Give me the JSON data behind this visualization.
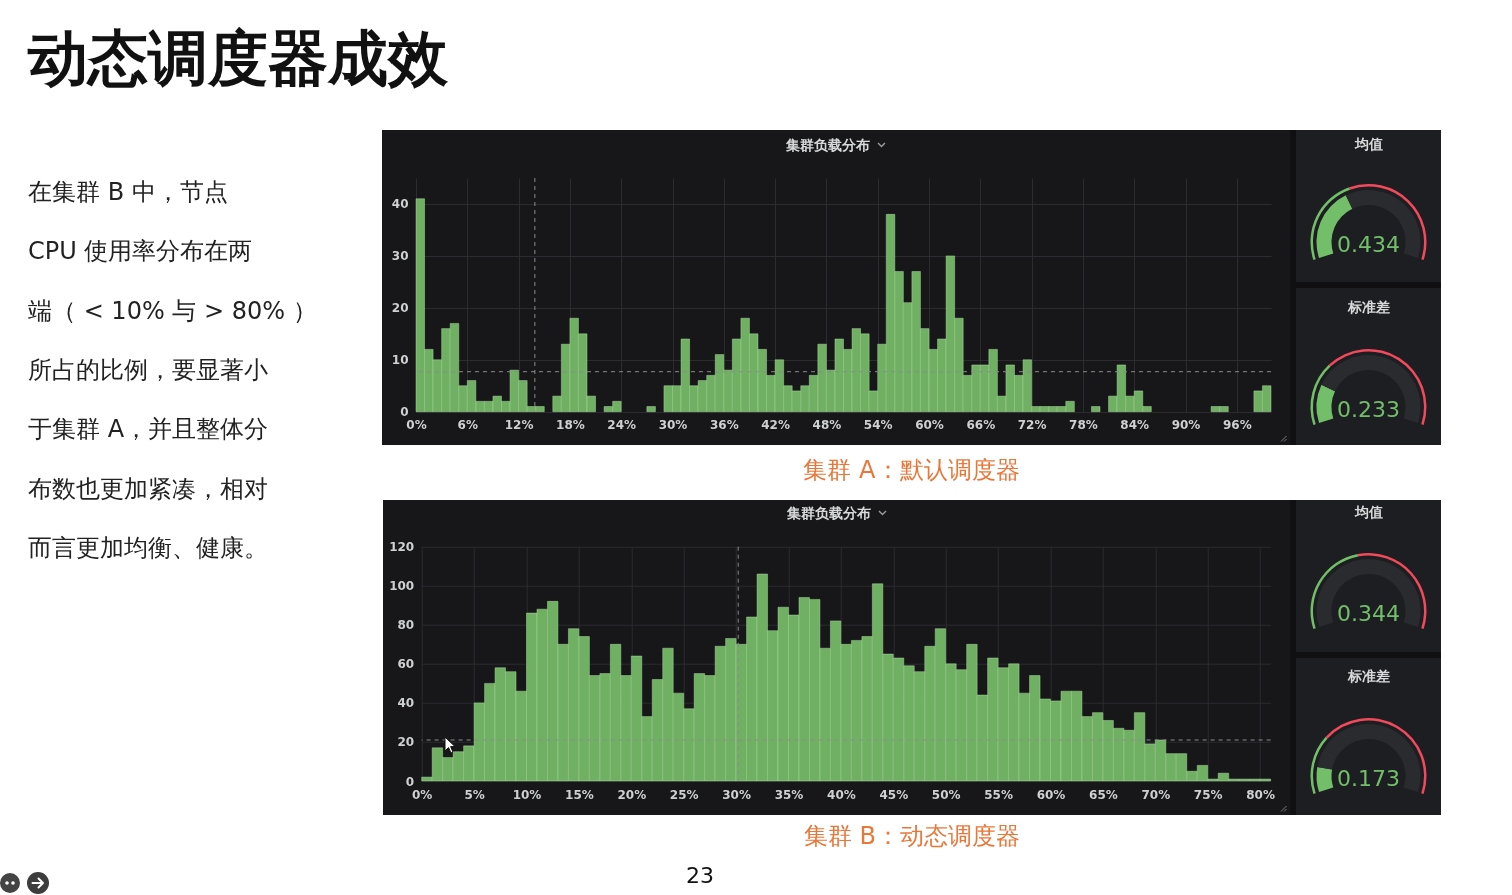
{
  "chart_data": [
    {
      "type": "other",
      "title": "动态调度器成效",
      "annotations": [
        "在集群 B 中，节点",
        "CPU 使用率分布在两",
        "端（ < 10% 与 > 80% ）",
        "所占的比例，要显著小",
        "于集群 A，并且整体分",
        "布数也更加紧凑，相对",
        "而言更加均衡、健康。",
        "23"
      ]
    },
    {
      "type": "histogram",
      "title": "集群负载分布",
      "bins": [
        0,
        1,
        2,
        3,
        4,
        5,
        6,
        7,
        8,
        9,
        10,
        11,
        12,
        13,
        14,
        15,
        16,
        17,
        18,
        19,
        20,
        21,
        22,
        23,
        24,
        25,
        26,
        27,
        28,
        29,
        30,
        31,
        32,
        33,
        34,
        35,
        36,
        37,
        38,
        39,
        40,
        41,
        42,
        43,
        44,
        45,
        46,
        47,
        48,
        49,
        50,
        51,
        52,
        53,
        54,
        55,
        56,
        57,
        58,
        59,
        60,
        61,
        62,
        63,
        64,
        65,
        66,
        67,
        68,
        69,
        70,
        71,
        72,
        73,
        74,
        75,
        76,
        77,
        78,
        79,
        80,
        81,
        82,
        83,
        84,
        85,
        86,
        87,
        88,
        89,
        90,
        91,
        92,
        93,
        94,
        95,
        96,
        97,
        98,
        99,
        100
      ],
      "values": [
        41,
        12,
        10,
        16,
        17,
        5,
        6,
        2,
        2,
        3,
        2,
        8,
        6,
        1,
        1,
        0,
        3,
        13,
        18,
        15,
        3,
        0,
        1,
        2,
        0,
        0,
        0,
        1,
        0,
        5,
        5,
        14,
        5,
        6,
        7,
        11,
        8,
        14,
        18,
        15,
        12,
        7,
        10,
        5,
        4,
        5,
        7,
        13,
        8,
        14,
        12,
        16,
        15,
        4,
        13,
        38,
        27,
        21,
        27,
        16,
        12,
        14,
        30,
        18,
        7,
        9,
        9,
        12,
        3,
        9,
        7,
        10,
        1,
        1,
        1,
        1,
        2,
        0,
        0,
        1,
        0,
        3,
        9,
        3,
        4,
        1,
        0,
        0,
        0,
        0,
        0,
        0,
        0,
        1,
        1,
        0,
        0,
        0,
        4,
        5
      ],
      "color": "#6fb063",
      "xlim": [
        0,
        100
      ],
      "ylim": [
        0,
        45
      ],
      "xticks": [
        {
          "value": 0,
          "label": "0%"
        },
        {
          "value": 6,
          "label": "6%"
        },
        {
          "value": 12,
          "label": "12%"
        },
        {
          "value": 18,
          "label": "18%"
        },
        {
          "value": 24,
          "label": "24%"
        },
        {
          "value": 30,
          "label": "30%"
        },
        {
          "value": 36,
          "label": "36%"
        },
        {
          "value": 42,
          "label": "42%"
        },
        {
          "value": 48,
          "label": "48%"
        },
        {
          "value": 54,
          "label": "54%"
        },
        {
          "value": 60,
          "label": "60%"
        },
        {
          "value": 66,
          "label": "66%"
        },
        {
          "value": 72,
          "label": "72%"
        },
        {
          "value": 78,
          "label": "78%"
        },
        {
          "value": 84,
          "label": "84%"
        },
        {
          "value": 90,
          "label": "90%"
        },
        {
          "value": 96,
          "label": "96%"
        }
      ],
      "yticks": [
        0,
        10,
        20,
        30,
        40
      ],
      "grid": true,
      "ref_lines": [
        {
          "axis": "x",
          "value": 13.9,
          "color": "#8c8c8c",
          "line_style": "dashed"
        },
        {
          "axis": "y",
          "value": 7.7,
          "color": "#8c8c8c",
          "line_style": "dashed"
        }
      ],
      "annotations": [
        "集群 A：默认调度器"
      ]
    },
    {
      "type": "donut",
      "title": "均值",
      "categories": [
        null,
        null
      ],
      "series": [
        {
          "values": [
            38,
            62
          ],
          "colors": [
            "#73bf69",
            "#2a2b2f"
          ]
        },
        {
          "values": [
            41,
            59
          ],
          "colors": [
            "#73bf69",
            "#f2495c"
          ]
        }
      ],
      "annotations": [
        "0.434"
      ]
    },
    {
      "type": "donut",
      "title": "标准差",
      "categories": [
        null,
        null
      ],
      "series": [
        {
          "values": [
            20,
            80
          ],
          "colors": [
            "#73bf69",
            "#2a2b2f"
          ]
        },
        {
          "values": [
            30,
            70
          ],
          "colors": [
            "#73bf69",
            "#f2495c"
          ]
        }
      ],
      "annotations": [
        "0.233"
      ]
    },
    {
      "type": "histogram",
      "title": "集群负载分布",
      "bins": [
        0,
        1,
        2,
        3,
        4,
        5,
        6,
        7,
        8,
        9,
        10,
        11,
        12,
        13,
        14,
        15,
        16,
        17,
        18,
        19,
        20,
        21,
        22,
        23,
        24,
        25,
        26,
        27,
        28,
        29,
        30,
        31,
        32,
        33,
        34,
        35,
        36,
        37,
        38,
        39,
        40,
        41,
        42,
        43,
        44,
        45,
        46,
        47,
        48,
        49,
        50,
        51,
        52,
        53,
        54,
        55,
        56,
        57,
        58,
        59,
        60,
        61,
        62,
        63,
        64,
        65,
        66,
        67,
        68,
        69,
        70,
        71,
        72,
        73,
        74,
        75,
        76,
        77,
        78,
        79,
        80,
        81
      ],
      "values": [
        2,
        17,
        12,
        15,
        18,
        40,
        50,
        58,
        56,
        46,
        86,
        88,
        92,
        70,
        78,
        74,
        54,
        55,
        70,
        54,
        64,
        33,
        52,
        68,
        45,
        37,
        55,
        54,
        69,
        73,
        70,
        84,
        106,
        77,
        89,
        85,
        94,
        93,
        68,
        82,
        70,
        72,
        74,
        101,
        65,
        63,
        59,
        56,
        69,
        78,
        60,
        57,
        70,
        44,
        63,
        58,
        60,
        45,
        54,
        42,
        41,
        46,
        46,
        33,
        35,
        31,
        27,
        26,
        35,
        19,
        21,
        14,
        14,
        5,
        8,
        1,
        4,
        1,
        1,
        1,
        1
      ],
      "color": "#6fb063",
      "xlim": [
        0,
        81
      ],
      "ylim": [
        0,
        120
      ],
      "xticks": [
        {
          "value": 0,
          "label": "0%"
        },
        {
          "value": 5,
          "label": "5%"
        },
        {
          "value": 10,
          "label": "10%"
        },
        {
          "value": 15,
          "label": "15%"
        },
        {
          "value": 20,
          "label": "20%"
        },
        {
          "value": 25,
          "label": "25%"
        },
        {
          "value": 30,
          "label": "30%"
        },
        {
          "value": 35,
          "label": "35%"
        },
        {
          "value": 40,
          "label": "40%"
        },
        {
          "value": 45,
          "label": "45%"
        },
        {
          "value": 50,
          "label": "50%"
        },
        {
          "value": 55,
          "label": "55%"
        },
        {
          "value": 60,
          "label": "60%"
        },
        {
          "value": 65,
          "label": "65%"
        },
        {
          "value": 70,
          "label": "70%"
        },
        {
          "value": 75,
          "label": "75%"
        },
        {
          "value": 80,
          "label": "80%"
        }
      ],
      "yticks": [
        0,
        20,
        40,
        60,
        80,
        100,
        120
      ],
      "grid": true,
      "ref_lines": [
        {
          "axis": "x",
          "value": 30.2,
          "color": "#8c8c8c",
          "line_style": "dashed"
        },
        {
          "axis": "y",
          "value": 21,
          "color": "#8c8c8c",
          "line_style": "dashed"
        }
      ],
      "annotations": [
        "集群 B：动态调度器"
      ]
    },
    {
      "type": "donut",
      "title": "均值",
      "series": [
        {
          "values": [
            100
          ],
          "colors": [
            "#2a2b2f"
          ]
        },
        {
          "values": [
            45,
            55
          ],
          "colors": [
            "#73bf69",
            "#f2495c"
          ]
        }
      ],
      "annotations": [
        "0.344"
      ]
    },
    {
      "type": "donut",
      "title": "标准差",
      "categories": [
        null,
        null
      ],
      "series": [
        {
          "values": [
            13,
            87
          ],
          "colors": [
            "#73bf69",
            "#2a2b2f"
          ]
        },
        {
          "values": [
            28,
            72
          ],
          "colors": [
            "#73bf69",
            "#f2495c"
          ]
        }
      ],
      "annotations": [
        "0.173"
      ]
    }
  ]
}
